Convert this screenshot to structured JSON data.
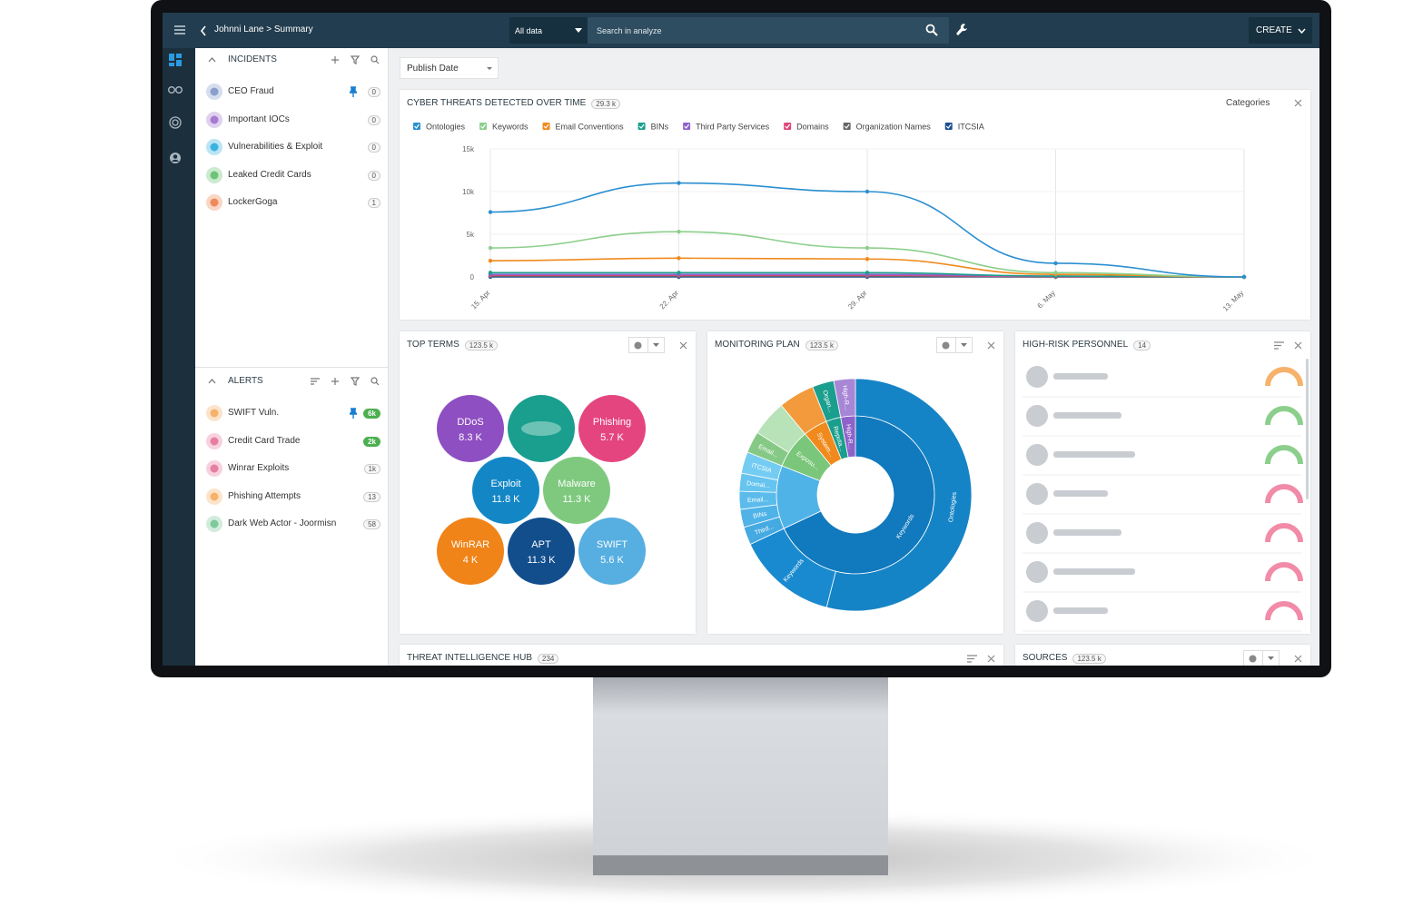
{
  "header": {
    "breadcrumb": "Johnni Lane > Summary",
    "scope": "All data",
    "search_placeholder": "Search in analyze",
    "create": "CREATE"
  },
  "incidents": {
    "title": "INCIDENTS",
    "items": [
      {
        "name": "CEO Fraud",
        "count": "0",
        "color": "#8a9fcb",
        "pinned": true
      },
      {
        "name": "Important IOCs",
        "count": "0",
        "color": "#a77bd1",
        "pinned": false
      },
      {
        "name": "Vulnerabilities & Exploit",
        "count": "0",
        "color": "#3bb3e0",
        "pinned": false
      },
      {
        "name": "Leaked Credit Cards",
        "count": "0",
        "color": "#6cc477",
        "pinned": false
      },
      {
        "name": "LockerGoga",
        "count": "1",
        "color": "#f08a5a",
        "pinned": false
      }
    ]
  },
  "alerts": {
    "title": "ALERTS",
    "items": [
      {
        "name": "SWIFT Vuln.",
        "count": "6k",
        "color": "#f6b26b",
        "pinned": true,
        "highlight": true
      },
      {
        "name": "Credit Card Trade",
        "count": "2k",
        "color": "#e77fa0",
        "pinned": false,
        "highlight": true
      },
      {
        "name": "Winrar Exploits",
        "count": "1k",
        "color": "#e77fa0",
        "pinned": false,
        "highlight": false
      },
      {
        "name": "Phishing Attempts",
        "count": "13",
        "color": "#f6b26b",
        "pinned": false,
        "highlight": false
      },
      {
        "name": "Dark Web Actor - Joormisn",
        "count": "58",
        "color": "#7dc99a",
        "pinned": false,
        "highlight": false
      }
    ]
  },
  "filter": "Publish Date",
  "top_terms": {
    "title": "TOP TERMS",
    "count": "123.5 k",
    "terms": [
      {
        "name": "DDoS",
        "label": "8.3 K",
        "color": "#8e4fc2"
      },
      {
        "name": "Phishing",
        "label": "5.7 K",
        "color": "#e5457f"
      },
      {
        "name": "Exploit",
        "label": "11.8 K",
        "color": "#1387c6"
      },
      {
        "name": "Malware",
        "label": "11.3 K",
        "color": "#7fc97f"
      },
      {
        "name": "WinRAR",
        "label": "4 K",
        "color": "#f08418"
      },
      {
        "name": "APT",
        "label": "11.3 K",
        "color": "#124e8c"
      },
      {
        "name": "SWIFT",
        "label": "5.6 K",
        "color": "#56afe0"
      }
    ]
  },
  "high_risk": {
    "title": "HIGH-RISK PERSONNEL",
    "count": "14"
  },
  "hub": {
    "title": "THREAT INTELLIGENCE HUB",
    "count": "234"
  },
  "sources": {
    "title": "SOURCES",
    "count": "123.5 k"
  },
  "chart_data": [
    {
      "type": "line",
      "title": "CYBER THREATS DETECTED OVER TIME",
      "total": "29.3 k",
      "menu": "Categories",
      "categories": [
        "15. Apr",
        "22. Apr",
        "29. Apr",
        "6. May",
        "13. May"
      ],
      "series": [
        {
          "name": "Ontologies",
          "color": "#2b8fd0",
          "values": [
            7600,
            11000,
            10000,
            1600,
            0
          ]
        },
        {
          "name": "Keywords",
          "color": "#8ccf8c",
          "values": [
            3400,
            5300,
            3400,
            500,
            0
          ]
        },
        {
          "name": "Email Conventions",
          "color": "#f08a1c",
          "values": [
            1900,
            2200,
            2100,
            300,
            0
          ]
        },
        {
          "name": "BINs",
          "color": "#1a9e8e",
          "values": [
            500,
            500,
            500,
            100,
            0
          ]
        },
        {
          "name": "Third Party Services",
          "color": "#8e62c9",
          "values": [
            300,
            300,
            300,
            100,
            0
          ]
        },
        {
          "name": "Domains",
          "color": "#e0457b",
          "values": [
            200,
            200,
            200,
            50,
            0
          ]
        },
        {
          "name": "Organization Names",
          "color": "#666666",
          "values": [
            100,
            100,
            100,
            0,
            0
          ]
        },
        {
          "name": "ITCSIA",
          "color": "#1e4f8f",
          "values": [
            0,
            0,
            0,
            0,
            0
          ]
        }
      ],
      "ylim": [
        0,
        15000
      ],
      "yticks": [
        {
          "value": 0,
          "label": "0"
        },
        {
          "value": 5000,
          "label": "5k"
        },
        {
          "value": 10000,
          "label": "10k"
        },
        {
          "value": 15000,
          "label": "15k"
        }
      ],
      "grid": true
    },
    {
      "type": "sunburst",
      "title": "MONITORING PLAN",
      "total": "123.5 k",
      "rings": [
        {
          "segments": [
            {
              "label": "Keywords",
              "value": 68,
              "color": "#1179bd"
            },
            {
              "label": null,
              "value": 13,
              "color": "#4fb3e8"
            },
            {
              "label": "Exposu...",
              "value": 8,
              "color": "#7ac67a"
            },
            {
              "label": "System...",
              "value": 5,
              "color": "#f08a1c"
            },
            {
              "label": "Reputa...",
              "value": 3,
              "color": "#1a9e8e"
            },
            {
              "label": "High-R...",
              "value": 3,
              "color": "#8e62c9"
            }
          ]
        },
        {
          "segments": [
            {
              "label": "Ontologies",
              "value": 54,
              "color": "#1584c6"
            },
            {
              "label": "Keywords",
              "value": 14,
              "color": "#1a8ad0"
            },
            {
              "label": "Third...",
              "value": 2.5,
              "color": "#45a9e2"
            },
            {
              "label": "BINs",
              "value": 2.5,
              "color": "#4fb3e8"
            },
            {
              "label": "Email...",
              "value": 2.5,
              "color": "#5bbcec"
            },
            {
              "label": "Domai...",
              "value": 2.5,
              "color": "#67c4ef"
            },
            {
              "label": "ITCSIA",
              "value": 3,
              "color": "#74ccf2"
            },
            {
              "label": "Email...",
              "value": 3,
              "color": "#86c986"
            },
            {
              "label": null,
              "value": 5,
              "color": "#b8e2b8"
            },
            {
              "label": null,
              "value": 5,
              "color": "#f39a3c"
            },
            {
              "label": "Organ...",
              "value": 3,
              "color": "#1a9e8e"
            },
            {
              "label": "High-R...",
              "value": 3,
              "color": "#a786d6"
            }
          ]
        }
      ]
    }
  ]
}
